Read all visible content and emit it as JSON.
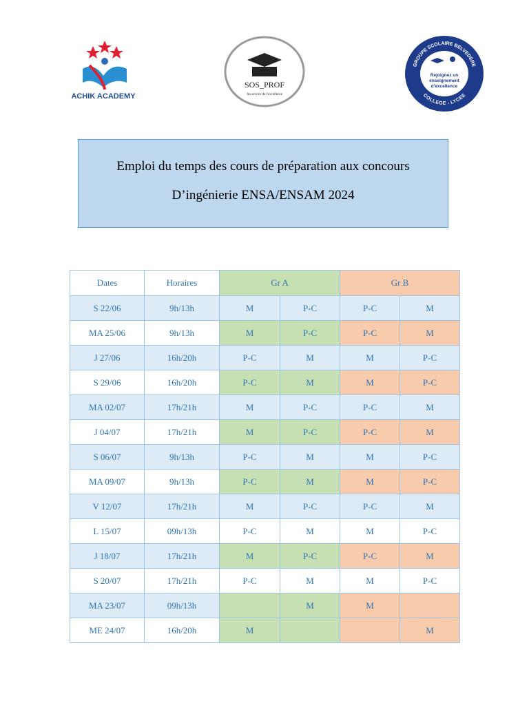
{
  "logos": {
    "left": {
      "name": "ACHIK ACADEMY"
    },
    "center": {
      "name": "SOS_PROF",
      "tagline": "Au service de l'excellence"
    },
    "right": {
      "top": "GROUPE SCOLAIRE BELVEDERE",
      "middle": "Rejoignez un enseignement d'excellence",
      "bottom": "COLLEGE - LYCEE"
    }
  },
  "header": {
    "title_line1": "Emploi du temps des cours de préparation aux concours",
    "title_line2": "D’ingénierie ENSA/ENSAM 2024"
  },
  "table": {
    "columns": [
      "Dates",
      "Horaires",
      "Gr A",
      "Gr B"
    ],
    "rows": [
      [
        "S 22/06",
        "9h/13h",
        "M",
        "P-C",
        "P-C",
        "M"
      ],
      [
        "MA 25/06",
        "9h/13h",
        "M",
        "P-C",
        "P-C",
        "M"
      ],
      [
        "J 27/06",
        "16h/20h",
        "P-C",
        "M",
        "M",
        "P-C"
      ],
      [
        "S 29/06",
        "16h/20h",
        "P-C",
        "M",
        "M",
        "P-C"
      ],
      [
        "MA 02/07",
        "17h/21h",
        "M",
        "P-C",
        "P-C",
        "M"
      ],
      [
        "J 04/07",
        "17h/21h",
        "M",
        "P-C",
        "P-C",
        "M"
      ],
      [
        "S 06/07",
        "9h/13h",
        "P-C",
        "M",
        "M",
        "P-C"
      ],
      [
        "MA 09/07",
        "9h/13h",
        "P-C",
        "M",
        "M",
        "P-C"
      ],
      [
        "V 12/07",
        "17h/21h",
        "M",
        "P-C",
        "P-C",
        "M"
      ],
      [
        "L 15/07",
        "09h/13h",
        "P-C",
        "M",
        "M",
        "P-C"
      ],
      [
        "J 18/07",
        "17h/21h",
        "M",
        "P-C",
        "P-C",
        "M"
      ],
      [
        "S 20/07",
        "17h/21h",
        "P-C",
        "M",
        "M",
        "P-C"
      ],
      [
        "MA 23/07",
        "09h/13h",
        null,
        "M",
        "M",
        null
      ],
      [
        "ME 24/07",
        "16h/20h",
        "M",
        null,
        null,
        "M"
      ]
    ]
  }
}
